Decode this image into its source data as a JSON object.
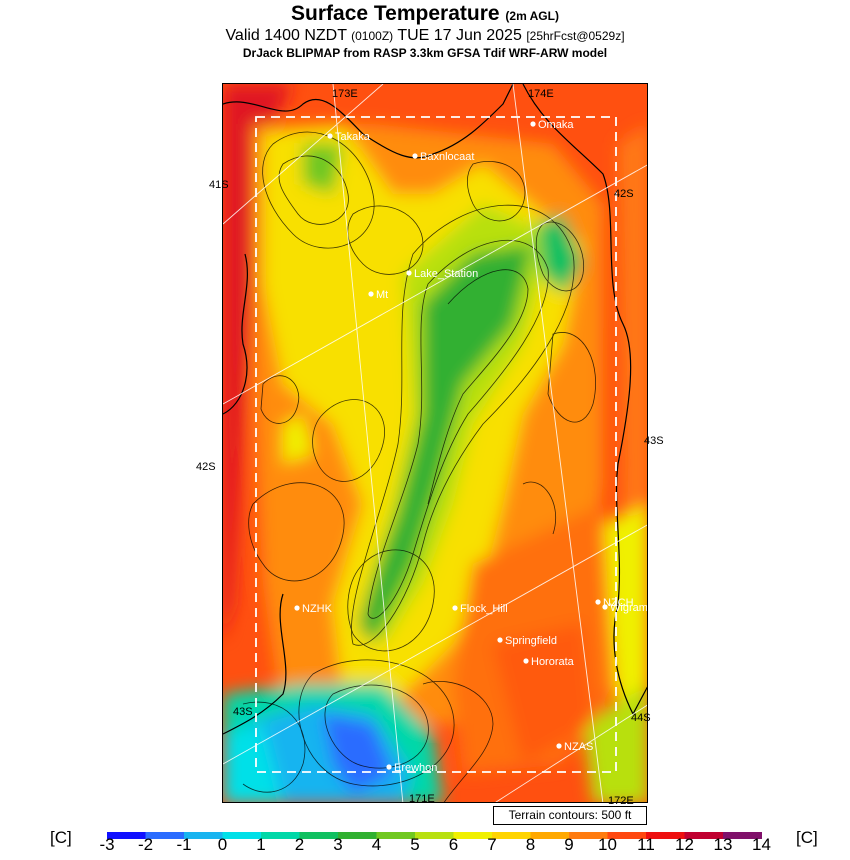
{
  "title": {
    "main": "Surface Temperature",
    "main_sub": "(2m AGL)",
    "valid_prefix": "Valid 1400 NZDT",
    "valid_utc": "(0100Z)",
    "valid_date": "TUE 17 Jun 2025",
    "forecast": "[25hrFcst@0529z]",
    "model": "DrJack BLIPMAP from RASP 3.3km GFSA Tdif WRF-ARW model"
  },
  "map": {
    "graticule_labels": [
      "173E",
      "174E",
      "41S",
      "42S",
      "42S",
      "43S",
      "43S",
      "44S",
      "171E",
      "172E"
    ],
    "places": [
      "Takaka",
      "Baxnlocaat",
      "Omaka",
      "Lake_Station",
      "Mt",
      "NZHK",
      "Flock_Hill",
      "NZCH",
      "Wigram",
      "Springfield",
      "Hororata",
      "NZAS",
      "Erewhon"
    ],
    "terrain_note": "Terrain contours: 500 ft"
  },
  "colorbar": {
    "unit": "[C]",
    "ticks": [
      "-3",
      "-2",
      "-1",
      "0",
      "1",
      "2",
      "3",
      "4",
      "5",
      "6",
      "7",
      "8",
      "9",
      "10",
      "11",
      "12",
      "13",
      "14"
    ],
    "colors": [
      "#1010ff",
      "#2a6cff",
      "#18b4f0",
      "#00e0e8",
      "#00d8a8",
      "#10c060",
      "#30b030",
      "#70c820",
      "#b8e010",
      "#f0f000",
      "#ffd400",
      "#ffa800",
      "#ff7c10",
      "#ff4810",
      "#ee1010",
      "#c00030",
      "#80106a"
    ]
  }
}
